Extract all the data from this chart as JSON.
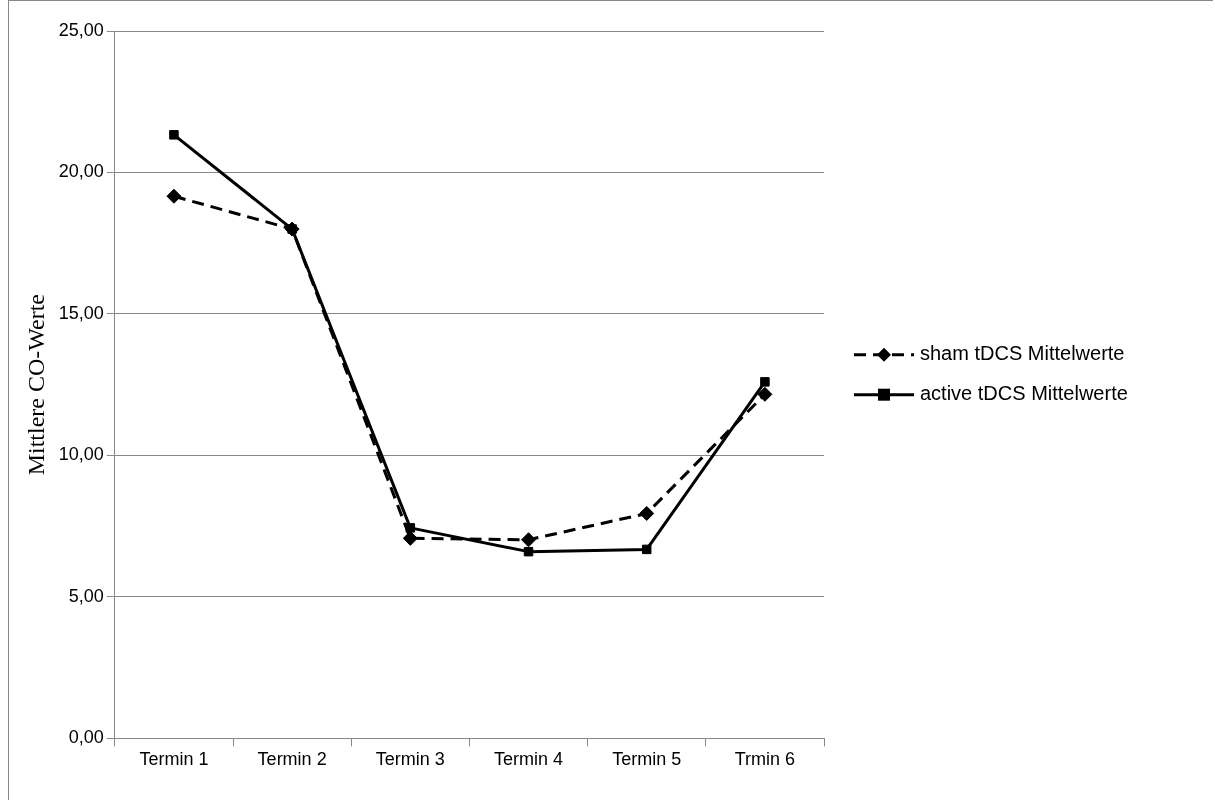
{
  "chart_data": {
    "type": "line",
    "ylabel": "Mittlere CO-Werte",
    "categories": [
      "Termin 1",
      "Termin 2",
      "Termin 3",
      "Termin 4",
      "Termin 5",
      "Trmin 6"
    ],
    "series": [
      {
        "name": "sham tDCS Mittelwerte",
        "color": "#000000",
        "marker": "diamond",
        "line_style": "dashed",
        "values": [
          19.16,
          18.0,
          7.07,
          7.02,
          7.95,
          12.16
        ]
      },
      {
        "name": "active tDCS Mittelwerte",
        "color": "#000000",
        "marker": "square",
        "line_style": "solid",
        "values": [
          21.33,
          18.0,
          7.44,
          6.6,
          6.68,
          12.6
        ]
      }
    ],
    "ylim": [
      0,
      25
    ],
    "yticks": [
      {
        "value": 0,
        "label": "0,00"
      },
      {
        "value": 5,
        "label": "5,00"
      },
      {
        "value": 10,
        "label": "10,00"
      },
      {
        "value": 15,
        "label": "15,00"
      },
      {
        "value": 20,
        "label": "20,00"
      },
      {
        "value": 25,
        "label": "25,00"
      }
    ],
    "grid": "y",
    "legend": "right"
  }
}
